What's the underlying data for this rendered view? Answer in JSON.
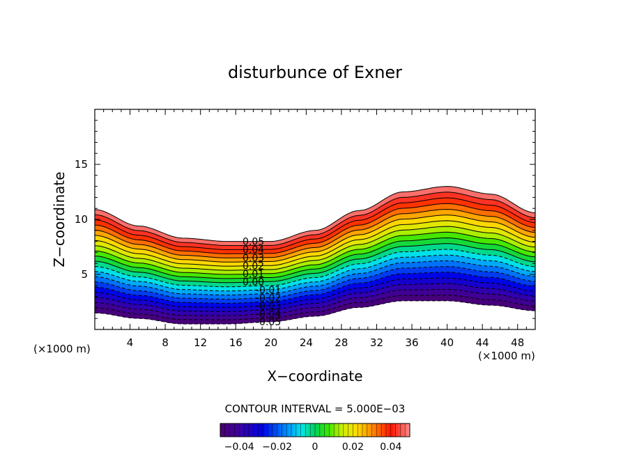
{
  "chart_data": {
    "type": "contour",
    "title": "disturbunce of Exner",
    "xlabel": "X−coordinate",
    "ylabel": "Z−coordinate",
    "x_unit_left": "(×1000 m)",
    "x_unit_right": "(×1000 m)",
    "xlim": [
      0,
      50
    ],
    "ylim": [
      0,
      20
    ],
    "xticks": [
      4,
      8,
      12,
      16,
      20,
      24,
      28,
      32,
      36,
      40,
      44,
      48
    ],
    "yticks": [
      5,
      10,
      15
    ],
    "terrain": {
      "description_values": "surface height (km) at x (km)",
      "x": [
        0,
        5,
        10,
        15,
        20,
        25,
        30,
        35,
        40,
        45,
        50
      ],
      "bottom_z": [
        1.5,
        1.0,
        0.5,
        0.5,
        0.7,
        1.2,
        2.0,
        2.6,
        2.6,
        2.2,
        1.7
      ],
      "top_z": [
        10.9,
        9.4,
        8.3,
        8.0,
        8.0,
        9.0,
        10.8,
        12.5,
        13.0,
        12.3,
        10.6
      ]
    },
    "contour_levels": [
      -0.05,
      -0.045,
      -0.04,
      -0.035,
      -0.03,
      -0.025,
      -0.02,
      -0.015,
      -0.01,
      -0.005,
      0.0,
      0.005,
      0.01,
      0.015,
      0.02,
      0.025,
      0.03,
      0.035,
      0.04,
      0.045,
      0.05
    ],
    "contour_labels": [
      "0.05",
      "0.04",
      "0.03",
      "0.02",
      "0.01",
      "0.00",
      "-0.01",
      "-0.02",
      "-0.03",
      "-0.04",
      "-0.05"
    ],
    "contour_interval_text": "CONTOUR INTERVAL = 5.000E−03",
    "colorbar": {
      "range": [
        -0.05,
        0.05
      ],
      "ticks": [
        "−0.04",
        "−0.02",
        "0",
        "0.02",
        "0.04"
      ],
      "tick_values": [
        -0.04,
        -0.02,
        0,
        0.02,
        0.04
      ],
      "colormap": "rainbow (purple to red)"
    },
    "grid": false
  }
}
